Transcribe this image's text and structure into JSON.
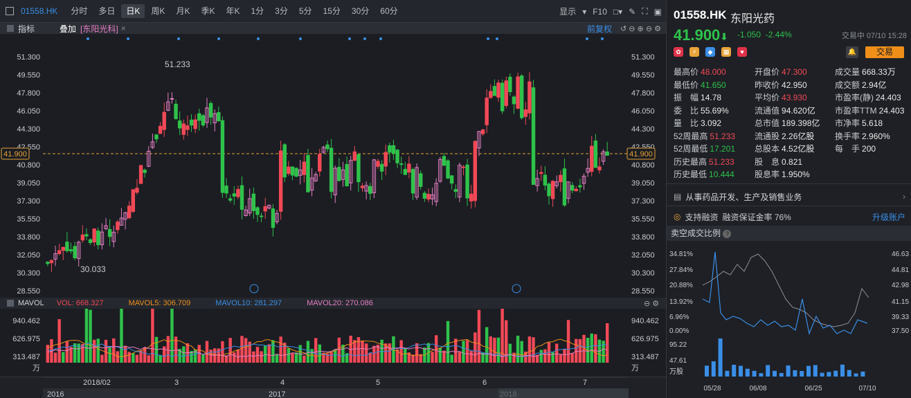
{
  "toolbar": {
    "symbol": "01558.HK",
    "periods": [
      "分时",
      "多日",
      "日K",
      "周K",
      "月K",
      "季K",
      "年K",
      "1分",
      "3分",
      "5分",
      "15分",
      "30分",
      "60分"
    ],
    "active": "日K",
    "display_label": "显示",
    "f10": "F10"
  },
  "indicator_bar": {
    "indicator": "指标",
    "overlay": "叠加",
    "overlay_tag": "[东阳光科]",
    "adjust": "前复权"
  },
  "price_axis": [
    "51.300",
    "49.550",
    "47.800",
    "46.050",
    "44.300",
    "42.550",
    "40.800",
    "39.050",
    "37.300",
    "35.550",
    "33.800",
    "32.050",
    "30.300",
    "28.550"
  ],
  "current_line": "41.900",
  "hi_label": "51.233",
  "lo_label": "30.033",
  "vol_bar": {
    "name": "MAVOL",
    "vol": "VOL: 668.327",
    "ma5": "MAVOL5: 306.709",
    "ma10": "MAVOL10: 281.297",
    "ma20": "MAVOL20: 270.086"
  },
  "vol_axis": [
    "940.462",
    "626.975",
    "313.487",
    "万"
  ],
  "time_axis": {
    "months": [
      "2018/02",
      "3",
      "4",
      "5",
      "6",
      "7"
    ],
    "years": [
      "2016",
      "2017",
      "2018"
    ]
  },
  "quote": {
    "code": "01558.HK",
    "name": "东阳光药",
    "price": "41.900",
    "arrow": "⬇",
    "change": "-1.050",
    "pct": "-2.44%",
    "time": "交易中 07/10 15:28",
    "trade": "交易",
    "rows": [
      [
        [
          "最高价",
          "48.000",
          "red"
        ],
        [
          "开盘价",
          "47.300",
          "red"
        ],
        [
          "成交量",
          "668.33万",
          "wht"
        ]
      ],
      [
        [
          "最低价",
          "41.650",
          "grn"
        ],
        [
          "昨收价",
          "42.950",
          "wht"
        ],
        [
          "成交额",
          "2.94亿",
          "wht"
        ]
      ],
      [
        [
          "振　幅",
          "14.78",
          "wht"
        ],
        [
          "平均价",
          "43.930",
          "red"
        ],
        [
          "市盈率(静)",
          "24.403",
          "wht"
        ]
      ],
      [
        [
          "委　比",
          "55.69%",
          "wht"
        ],
        [
          "流通值",
          "94.620亿",
          "wht"
        ],
        [
          "市盈率TTM",
          "24.403",
          "wht"
        ]
      ],
      [
        [
          "量　比",
          "3.092",
          "wht"
        ],
        [
          "总市值",
          "189.398亿",
          "wht"
        ],
        [
          "市净率",
          "5.618",
          "wht"
        ]
      ],
      [
        [
          "52周最高",
          "51.233",
          "red"
        ],
        [
          "流通股",
          "2.26亿股",
          "wht"
        ],
        [
          "换手率",
          "2.960%",
          "wht"
        ]
      ],
      [
        [
          "52周最低",
          "17.201",
          "grn"
        ],
        [
          "总股本",
          "4.52亿股",
          "wht"
        ],
        [
          "每　手",
          "200",
          "wht"
        ]
      ],
      [
        [
          "历史最高",
          "51.233",
          "red"
        ],
        [
          "股　息",
          "0.821",
          "wht"
        ]
      ],
      [
        [
          "历史最低",
          "10.444",
          "grn"
        ],
        [
          "股息率",
          "1.950%",
          "wht"
        ]
      ]
    ],
    "business": "从事药品开发、生产及销售业务",
    "margin": "支持融资",
    "margin_rate": "融资保证金率 76%",
    "upgrade": "升级账户"
  },
  "short_sell": {
    "title": "卖空成交比例",
    "left_axis": [
      "34.81%",
      "27.84%",
      "20.88%",
      "13.92%",
      "6.96%",
      "0.00%"
    ],
    "right_axis": [
      "46.63",
      "44.81",
      "42.98",
      "41.15",
      "39.33",
      "37.50"
    ],
    "vol_axis": [
      "95.22",
      "47.61",
      "万股"
    ],
    "dates": [
      "05/28",
      "06/08",
      "06/25",
      "07/10"
    ]
  },
  "colors": {
    "up": "#f24957",
    "down": "#2fc24b",
    "pink": "#e57fc4",
    "accent": "#3a8ee6"
  }
}
